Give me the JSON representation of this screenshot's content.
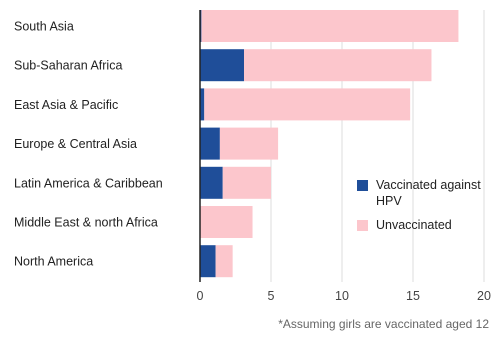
{
  "chart_data": {
    "type": "bar",
    "orientation": "horizontal",
    "stacked": true,
    "categories": [
      "South Asia",
      "Sub-Saharan Africa",
      "East Asia & Pacific",
      "Europe & Central Asia",
      "Latin America & Caribbean",
      "Middle East & north Africa",
      "North America"
    ],
    "series": [
      {
        "name": "Vaccinated against HPV",
        "color": "#1f4e99",
        "values": [
          0.1,
          3.1,
          0.3,
          1.4,
          1.6,
          0,
          1.1
        ]
      },
      {
        "name": "Unvaccinated",
        "color": "#fcc6cc",
        "values": [
          18.1,
          13.2,
          14.5,
          4.1,
          3.4,
          3.7,
          1.2
        ]
      }
    ],
    "xlim": [
      0,
      20
    ],
    "xticks": [
      "0",
      "5",
      "10",
      "15",
      "20"
    ],
    "grid": true,
    "legend_position": "right",
    "footnote": "*Assuming girls are vaccinated aged 12"
  }
}
